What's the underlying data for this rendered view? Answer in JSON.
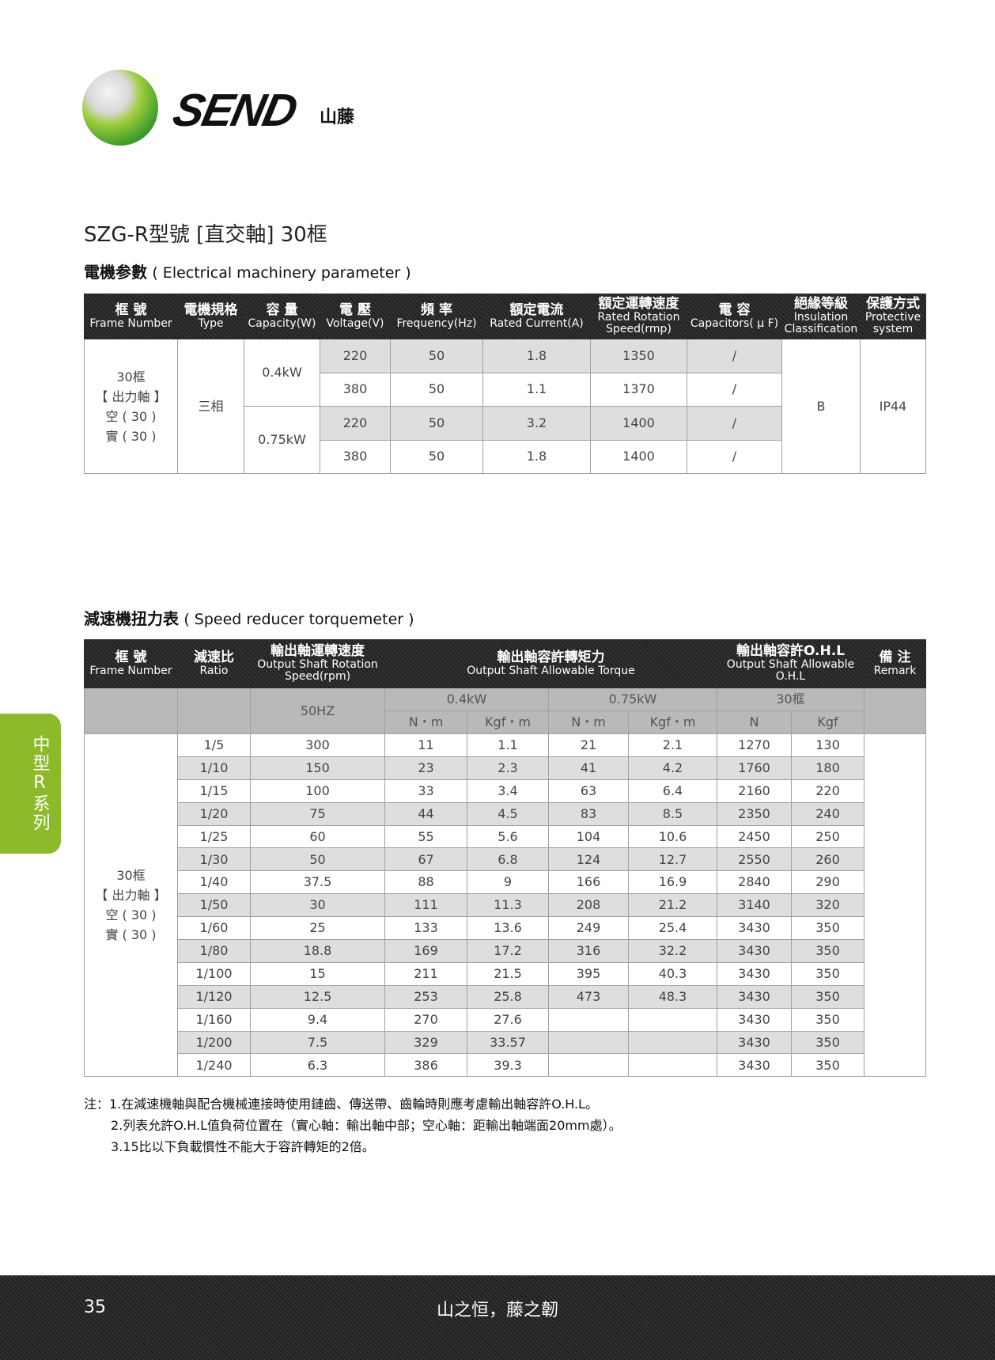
{
  "logo": {
    "brand": "SEND",
    "brand_cn": "山藤"
  },
  "title": "SZG-R型號 [直交軸] 30框",
  "section1": {
    "title_cn": "電機参數",
    "title_en": "( Electrical machinery parameter )",
    "headers": [
      [
        "框 號",
        "Frame Number"
      ],
      [
        "電機規格",
        "Type"
      ],
      [
        "容 量",
        "Capacity(W)"
      ],
      [
        "電 壓",
        "Voltage(V)"
      ],
      [
        "頻 率",
        "Frequency(Hz)"
      ],
      [
        "額定電流",
        "Rated Current(A)"
      ],
      [
        "額定運轉速度",
        "Rated Rotation Speed(rmp)"
      ],
      [
        "電 容",
        "Capacitors( μ F)"
      ],
      [
        "絕緣等級",
        "Insulation Classification"
      ],
      [
        "保護方式",
        "Protective system"
      ]
    ],
    "frame": [
      "30框",
      "【 出力軸 】",
      "空 ( 30 )",
      "實 ( 30 )"
    ],
    "type": "三相",
    "capacities": [
      "0.4kW",
      "0.75kW"
    ],
    "rows": [
      [
        "220",
        "50",
        "1.8",
        "1350",
        "/"
      ],
      [
        "380",
        "50",
        "1.1",
        "1370",
        "/"
      ],
      [
        "220",
        "50",
        "3.2",
        "1400",
        "/"
      ],
      [
        "380",
        "50",
        "1.8",
        "1400",
        "/"
      ]
    ],
    "insulation": "B",
    "protection": "IP44"
  },
  "section2": {
    "title_cn": "減速機扭力表",
    "title_en": "( Speed reducer torquemeter )",
    "headers": [
      [
        "框 號",
        "Frame Number"
      ],
      [
        "減速比",
        "Ratio"
      ],
      [
        "輸出軸運轉速度",
        "Output Shaft Rotation Speed(rpm)"
      ],
      [
        "輸出軸容許轉矩力",
        "Output Shaft Allowable Torque"
      ],
      [
        "輸出軸容許O.H.L",
        "Output Shaft Allowable O.H.L"
      ],
      [
        "備 注",
        "Remark"
      ]
    ],
    "speed_sub": "50HZ",
    "groups": [
      "0.4kW",
      "0.75kW",
      "30框"
    ],
    "units": [
      "N・m",
      "Kgf・m",
      "N・m",
      "Kgf・m",
      "N",
      "Kgf"
    ],
    "frame": [
      "30框",
      "【 出力軸 】",
      "空 ( 30 )",
      "實 ( 30 )"
    ],
    "rows": [
      [
        "1/5",
        "300",
        "11",
        "1.1",
        "21",
        "2.1",
        "1270",
        "130"
      ],
      [
        "1/10",
        "150",
        "23",
        "2.3",
        "41",
        "4.2",
        "1760",
        "180"
      ],
      [
        "1/15",
        "100",
        "33",
        "3.4",
        "63",
        "6.4",
        "2160",
        "220"
      ],
      [
        "1/20",
        "75",
        "44",
        "4.5",
        "83",
        "8.5",
        "2350",
        "240"
      ],
      [
        "1/25",
        "60",
        "55",
        "5.6",
        "104",
        "10.6",
        "2450",
        "250"
      ],
      [
        "1/30",
        "50",
        "67",
        "6.8",
        "124",
        "12.7",
        "2550",
        "260"
      ],
      [
        "1/40",
        "37.5",
        "88",
        "9",
        "166",
        "16.9",
        "2840",
        "290"
      ],
      [
        "1/50",
        "30",
        "111",
        "11.3",
        "208",
        "21.2",
        "3140",
        "320"
      ],
      [
        "1/60",
        "25",
        "133",
        "13.6",
        "249",
        "25.4",
        "3430",
        "350"
      ],
      [
        "1/80",
        "18.8",
        "169",
        "17.2",
        "316",
        "32.2",
        "3430",
        "350"
      ],
      [
        "1/100",
        "15",
        "211",
        "21.5",
        "395",
        "40.3",
        "3430",
        "350"
      ],
      [
        "1/120",
        "12.5",
        "253",
        "25.8",
        "473",
        "48.3",
        "3430",
        "350"
      ],
      [
        "1/160",
        "9.4",
        "270",
        "27.6",
        "",
        "",
        "3430",
        "350"
      ],
      [
        "1/200",
        "7.5",
        "329",
        "33.57",
        "",
        "",
        "3430",
        "350"
      ],
      [
        "1/240",
        "6.3",
        "386",
        "39.3",
        "",
        "",
        "3430",
        "350"
      ]
    ]
  },
  "notes": [
    "注：1.在減速機軸與配合機械連接時使用鏈齒、傳送帶、齒輪時則應考慮輸出軸容許O.H.L。",
    "2.列表允許O.H.L值負荷位置在（實心軸：輸出軸中部；空心軸：距輸出軸端面20mm處）。",
    "3.15比以下負載慣性不能大于容許轉矩的2倍。"
  ],
  "side_tab": "中型R系列",
  "footer": {
    "page": "35",
    "slogan": "山之恒，藤之韌"
  },
  "colors": {
    "accent_green": "#8cba2a",
    "header_dark": "#2b2b2b",
    "row_gray": "#dedede",
    "subheader_gray": "#b9b9b9"
  }
}
